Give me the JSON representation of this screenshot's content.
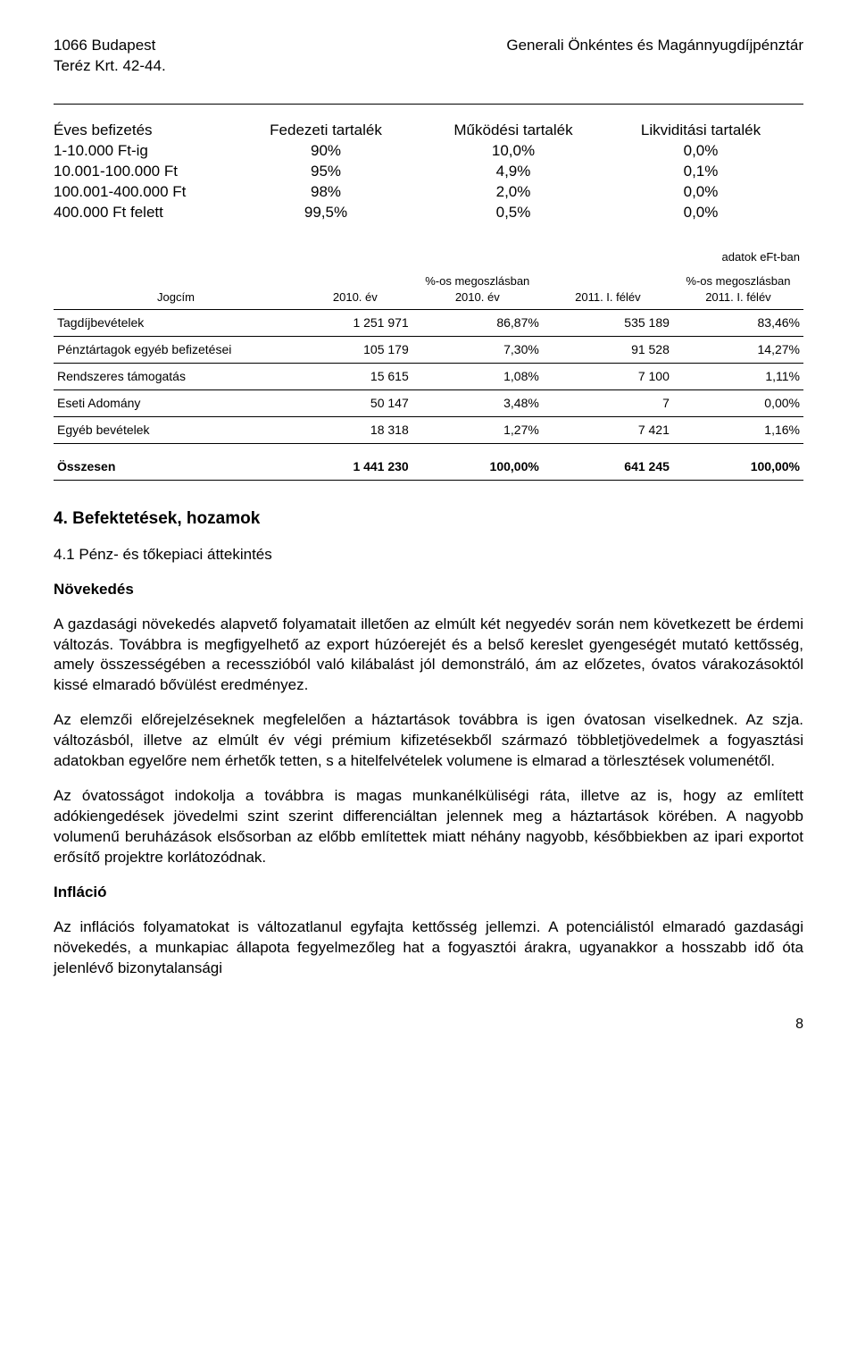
{
  "header": {
    "address_line1": "1066 Budapest",
    "address_line2": "Teréz Krt. 42-44.",
    "org": "Generali Önkéntes és Magánnyugdíjpénztár"
  },
  "tiers": {
    "headers": [
      "Éves befizetés",
      "Fedezeti tartalék",
      "Működési tartalék",
      "Likviditási tartalék"
    ],
    "rows": [
      {
        "label": "1-10.000 Ft-ig",
        "c1": "90%",
        "c2": "10,0%",
        "c3": "0,0%"
      },
      {
        "label": "10.001-100.000 Ft",
        "c1": "95%",
        "c2": "4,9%",
        "c3": "0,1%"
      },
      {
        "label": "100.001-400.000 Ft",
        "c1": "98%",
        "c2": "2,0%",
        "c3": "0,0%"
      },
      {
        "label": "400.000 Ft felett",
        "c1": "99,5%",
        "c2": "0,5%",
        "c3": "0,0%"
      }
    ]
  },
  "table": {
    "adatok": "adatok eFt-ban",
    "headers": {
      "jogcim": "Jogcím",
      "ev2010": "2010. év",
      "pct2010": "%-os megoszlásban 2010. év",
      "felev2011": "2011. I. félév",
      "pct2011": "%-os megoszlásban 2011. I. félév"
    },
    "rows": [
      {
        "label": "Tagdíjbevételek",
        "a": "1 251 971",
        "b": "86,87%",
        "c": "535 189",
        "d": "83,46%"
      },
      {
        "label": "Pénztártagok egyéb befizetései",
        "a": "105 179",
        "b": "7,30%",
        "c": "91 528",
        "d": "14,27%"
      },
      {
        "label": "Rendszeres támogatás",
        "a": "15 615",
        "b": "1,08%",
        "c": "7 100",
        "d": "1,11%"
      },
      {
        "label": "Eseti Adomány",
        "a": "50 147",
        "b": "3,48%",
        "c": "7",
        "d": "0,00%"
      },
      {
        "label": "Egyéb bevételek",
        "a": "18 318",
        "b": "1,27%",
        "c": "7 421",
        "d": "1,16%"
      }
    ],
    "sum": {
      "label": "Összesen",
      "a": "1 441 230",
      "b": "100,00%",
      "c": "641 245",
      "d": "100,00%"
    }
  },
  "sections": {
    "s4_title": "4. Befektetések, hozamok",
    "s41_title": "4.1 Pénz- és tőkepiaci áttekintés",
    "novekedes_label": "Növekedés",
    "p1": "A gazdasági növekedés alapvető folyamatait illetően az elmúlt két negyedév során nem következett be érdemi változás. Továbbra is megfigyelhető az export húzóerejét és a belső kereslet gyengeségét mutató kettősség, amely összességében a recesszióból való kilábalást jól demonstráló, ám az előzetes, óvatos várakozásoktól kissé elmaradó bővülést eredményez.",
    "p1b": "Az elemzői előrejelzéseknek megfelelően a háztartások továbbra is igen óvatosan viselkednek. Az szja. változásból, illetve az elmúlt év végi prémium kifizetésekből származó többletjövedelmek a fogyasztási adatokban egyelőre nem érhetők tetten, s a hitelfelvételek volumene is elmarad a törlesztések volumenétől.",
    "p2": "Az óvatosságot indokolja a továbbra is magas munkanélküliségi ráta, illetve az is, hogy az említett adókiengedések jövedelmi szint szerint differenciáltan jelennek meg a háztartások körében. A nagyobb volumenű beruházások elsősorban az előbb említettek miatt néhány nagyobb, későbbiekben az ipari exportot erősítő projektre korlátozódnak.",
    "inflacio_label": "Infláció",
    "p3": "Az inflációs folyamatokat is változatlanul egyfajta kettősség jellemzi. A potenciálistól elmaradó gazdasági növekedés, a munkapiac állapota fegyelmezőleg hat a fogyasztói árakra, ugyanakkor a hosszabb idő óta jelenlévő bizonytalansági"
  },
  "page_number": "8"
}
